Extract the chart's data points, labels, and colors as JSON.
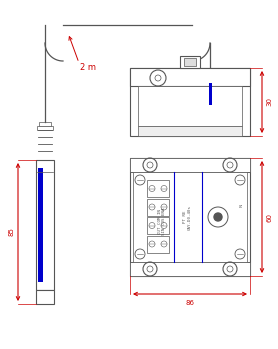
{
  "line_color": "#555555",
  "dim_color": "#cc0000",
  "blue_color": "#0000cc",
  "label_2m": "2 m",
  "label_85": "85",
  "label_30": "30",
  "label_60": "60",
  "label_86": "86",
  "figw": 2.78,
  "figh": 3.49,
  "dpi": 100
}
